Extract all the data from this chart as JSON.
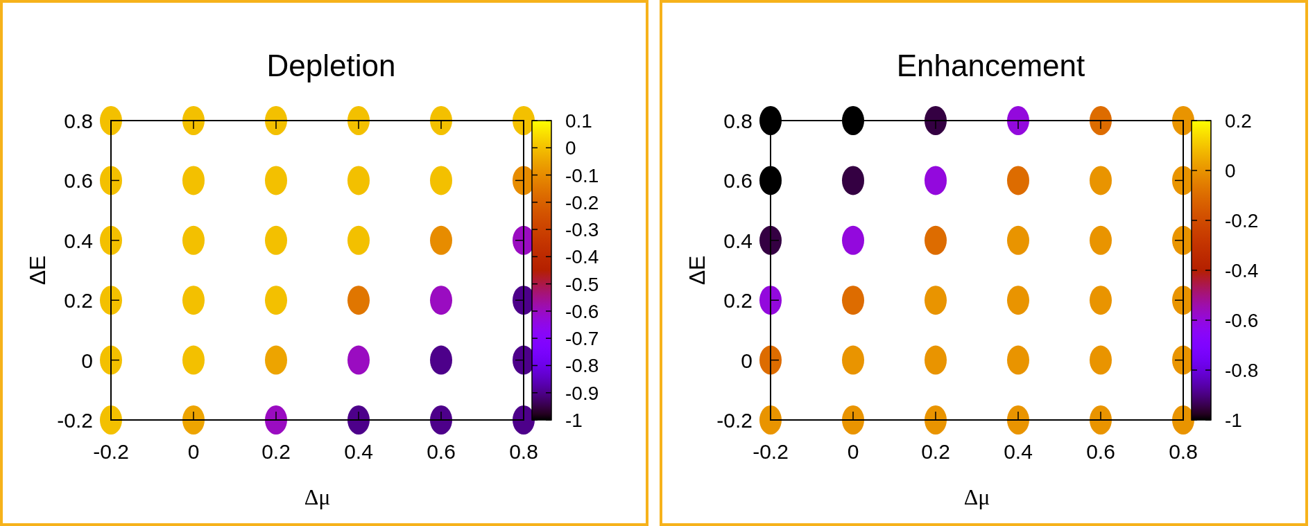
{
  "chart_data": [
    {
      "type": "scatter",
      "title": "Depletion",
      "xlabel": "Δμ",
      "ylabel": "ΔE",
      "marker": "circle",
      "x": [
        -0.2,
        0,
        0.2,
        0.4,
        0.6,
        0.8,
        -0.2,
        0,
        0.2,
        0.4,
        0.6,
        0.8,
        -0.2,
        0,
        0.2,
        0.4,
        0.6,
        0.8,
        -0.2,
        0,
        0.2,
        0.4,
        0.6,
        0.8,
        -0.2,
        0,
        0.2,
        0.4,
        0.6,
        0.8,
        -0.2,
        0,
        0.2,
        0.4,
        0.6,
        0.8
      ],
      "values": [
        0.8,
        0.8,
        0.8,
        0.8,
        0.8,
        0.8,
        0.6,
        0.6,
        0.6,
        0.6,
        0.6,
        0.6,
        0.4,
        0.4,
        0.4,
        0.4,
        0.4,
        0.4,
        0.2,
        0.2,
        0.2,
        0.2,
        0.2,
        0.2,
        0,
        0,
        0,
        0,
        0,
        0,
        -0.2,
        -0.2,
        -0.2,
        -0.2,
        -0.2,
        -0.2
      ],
      "cvalues": [
        0,
        0,
        0,
        0,
        0,
        0,
        0,
        0,
        0,
        0,
        0,
        -0.1,
        0,
        0,
        0,
        0,
        -0.1,
        -0.6,
        0,
        0,
        0,
        -0.15,
        -0.6,
        -0.9,
        0,
        0,
        -0.05,
        -0.6,
        -0.9,
        -0.9,
        0,
        -0.05,
        -0.6,
        -0.9,
        -0.9,
        -0.9
      ],
      "xlim": [
        -0.2,
        0.8
      ],
      "ylim": [
        -0.2,
        0.8
      ],
      "xticks": [
        -0.2,
        0,
        0.2,
        0.4,
        0.6,
        0.8
      ],
      "yticks": [
        -0.2,
        0,
        0.2,
        0.4,
        0.6,
        0.8
      ],
      "clim": [
        -1,
        0.1
      ],
      "cticks": [
        0.1,
        0,
        -0.1,
        -0.2,
        -0.3,
        -0.4,
        -0.5,
        -0.6,
        -0.7,
        -0.8,
        -0.9,
        -1
      ]
    },
    {
      "type": "scatter",
      "title": "Enhancement",
      "xlabel": "Δμ",
      "ylabel": "ΔE",
      "marker": "circle",
      "x": [
        -0.2,
        0,
        0.2,
        0.4,
        0.6,
        0.8,
        -0.2,
        0,
        0.2,
        0.4,
        0.6,
        0.8,
        -0.2,
        0,
        0.2,
        0.4,
        0.6,
        0.8,
        -0.2,
        0,
        0.2,
        0.4,
        0.6,
        0.8,
        -0.2,
        0,
        0.2,
        0.4,
        0.6,
        0.8,
        -0.2,
        0,
        0.2,
        0.4,
        0.6,
        0.8
      ],
      "values": [
        0.8,
        0.8,
        0.8,
        0.8,
        0.8,
        0.8,
        0.6,
        0.6,
        0.6,
        0.6,
        0.6,
        0.6,
        0.4,
        0.4,
        0.4,
        0.4,
        0.4,
        0.4,
        0.2,
        0.2,
        0.2,
        0.2,
        0.2,
        0.2,
        0,
        0,
        0,
        0,
        0,
        0,
        -0.2,
        -0.2,
        -0.2,
        -0.2,
        -0.2,
        -0.2
      ],
      "cvalues": [
        -1,
        -1,
        -0.95,
        -0.6,
        -0.1,
        0,
        -1,
        -0.95,
        -0.6,
        -0.1,
        0,
        0,
        -0.95,
        -0.6,
        -0.1,
        0,
        0,
        0,
        -0.6,
        -0.1,
        0,
        0,
        0,
        0,
        -0.1,
        0,
        0,
        0,
        0,
        0,
        0,
        0,
        0,
        0,
        0,
        0
      ],
      "xlim": [
        -0.2,
        0.8
      ],
      "ylim": [
        -0.2,
        0.8
      ],
      "xticks": [
        -0.2,
        0,
        0.2,
        0.4,
        0.6,
        0.8
      ],
      "yticks": [
        -0.2,
        0,
        0.2,
        0.4,
        0.6,
        0.8
      ],
      "clim": [
        -1,
        0.2
      ],
      "cticks": [
        0.2,
        0,
        -0.2,
        -0.4,
        -0.6,
        -0.8,
        -1
      ]
    }
  ]
}
